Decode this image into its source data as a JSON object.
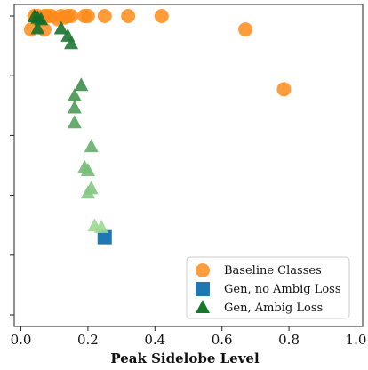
{
  "chart_data": {
    "type": "scatter",
    "title": "",
    "xlabel": "Peak Sidelobe Level",
    "ylabel": "",
    "xlim": [
      -0.02,
      1.02
    ],
    "ylim": [
      0,
      1
    ],
    "xticks": [
      0.0,
      0.2,
      0.4,
      0.6,
      0.8,
      1.0
    ],
    "xtick_labels": [
      "0.0",
      "0.2",
      "0.4",
      "0.6",
      "0.8",
      "1.0"
    ],
    "yticks": [
      0.0,
      0.2,
      0.4,
      0.6,
      0.8,
      1.0
    ],
    "ytick_labels": [
      "",
      "",
      "",
      "",
      "",
      ""
    ],
    "grid": false,
    "legend": {
      "position": "bottom-right"
    },
    "series": [
      {
        "name": "Baseline Classes",
        "marker": "circle",
        "color": "#ff8c1a",
        "points": [
          [
            0.04,
            1.0
          ],
          [
            0.05,
            1.0
          ],
          [
            0.07,
            1.0
          ],
          [
            0.09,
            1.0
          ],
          [
            0.12,
            1.0
          ],
          [
            0.14,
            1.0
          ],
          [
            0.19,
            1.0
          ],
          [
            0.25,
            1.0
          ],
          [
            0.32,
            1.0
          ],
          [
            0.42,
            1.0
          ],
          [
            0.05,
            0.99
          ],
          [
            0.08,
            1.0
          ],
          [
            0.11,
            0.99
          ],
          [
            0.13,
            0.995
          ],
          [
            0.15,
            1.0
          ],
          [
            0.2,
            1.0
          ],
          [
            0.03,
            0.955
          ],
          [
            0.07,
            0.955
          ],
          [
            0.67,
            0.955
          ],
          [
            0.785,
            0.755
          ]
        ]
      },
      {
        "name": "Gen, no Ambig Loss",
        "marker": "square",
        "color": "#1f77b4",
        "points": [
          [
            0.25,
            0.26
          ]
        ]
      },
      {
        "name": "Gen, Ambig Loss",
        "marker": "triangle",
        "color_scale": [
          "#0f6b27",
          "#9fdc97"
        ],
        "points": [
          [
            0.04,
            1.0
          ],
          [
            0.05,
            0.995
          ],
          [
            0.06,
            0.99
          ],
          [
            0.05,
            0.96
          ],
          [
            0.12,
            0.96
          ],
          [
            0.14,
            0.935
          ],
          [
            0.15,
            0.91
          ],
          [
            0.18,
            0.77
          ],
          [
            0.16,
            0.735
          ],
          [
            0.16,
            0.695
          ],
          [
            0.16,
            0.645
          ],
          [
            0.21,
            0.565
          ],
          [
            0.19,
            0.495
          ],
          [
            0.2,
            0.485
          ],
          [
            0.21,
            0.425
          ],
          [
            0.2,
            0.41
          ],
          [
            0.22,
            0.3
          ],
          [
            0.24,
            0.295
          ]
        ]
      }
    ]
  }
}
